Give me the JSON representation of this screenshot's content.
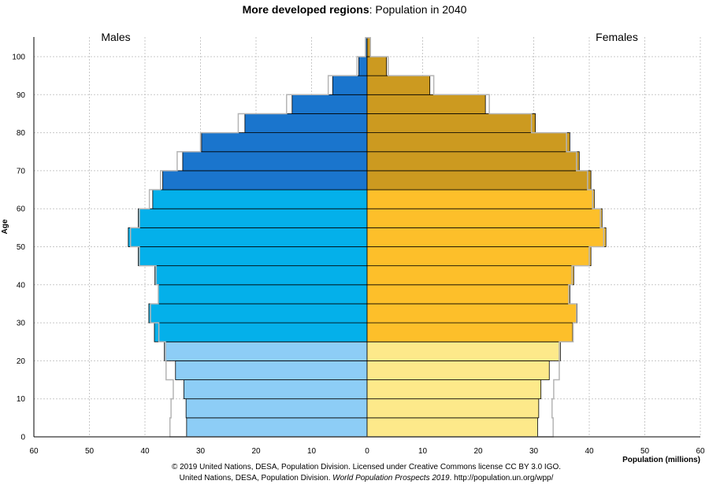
{
  "chart_data": {
    "type": "bar",
    "title_bold": "More developed regions",
    "title_rest": ": Population in 2040",
    "left_label": "Males",
    "right_label": "Females",
    "ylabel": "Age",
    "xlabel": "Population (millions)",
    "xlim": [
      -60,
      60
    ],
    "x_ticks": [
      -60,
      -50,
      -40,
      -30,
      -20,
      -10,
      0,
      10,
      20,
      30,
      40,
      50,
      60
    ],
    "x_tick_labels": [
      "60",
      "50",
      "40",
      "30",
      "20",
      "10",
      "0",
      "10",
      "20",
      "30",
      "40",
      "50",
      "60"
    ],
    "y_ticks": [
      0,
      10,
      20,
      30,
      40,
      50,
      60,
      70,
      80,
      90,
      100
    ],
    "age_groups": [
      "0-4",
      "5-9",
      "10-14",
      "15-19",
      "20-24",
      "25-29",
      "30-34",
      "35-39",
      "40-44",
      "45-49",
      "50-54",
      "55-59",
      "60-64",
      "65-69",
      "70-74",
      "75-79",
      "80-84",
      "85-89",
      "90-94",
      "95-99",
      "100+"
    ],
    "grid": true,
    "series": [
      {
        "name": "Males",
        "values": [
          32.5,
          32.6,
          33.0,
          34.5,
          36.5,
          38.3,
          39.3,
          37.6,
          38.2,
          41.2,
          43.0,
          41.2,
          38.6,
          36.8,
          33.2,
          29.8,
          22.0,
          13.5,
          6.2,
          1.5,
          0.3
        ]
      },
      {
        "name": "Females",
        "values": [
          30.7,
          30.9,
          31.3,
          32.8,
          34.8,
          37.0,
          37.8,
          36.5,
          37.2,
          40.3,
          43.0,
          42.3,
          40.9,
          40.3,
          38.2,
          36.5,
          30.3,
          21.3,
          11.3,
          3.5,
          0.6
        ]
      }
    ],
    "comparison_males": [
      35.5,
      35.3,
      34.9,
      36.2,
      36.3,
      37.5,
      39.0,
      37.6,
      38.0,
      41.0,
      42.6,
      41.0,
      39.2,
      37.2,
      34.2,
      30.0,
      23.2,
      14.5,
      7.0,
      1.8,
      0.3
    ],
    "comparison_females": [
      33.5,
      33.3,
      33.6,
      34.6,
      34.6,
      37.1,
      37.7,
      36.3,
      36.9,
      40.0,
      42.6,
      42.0,
      40.6,
      39.7,
      37.7,
      35.9,
      29.6,
      22.0,
      12.0,
      3.8,
      0.6
    ],
    "bar_colors_male": [
      "#8dcdf6",
      "#8dcdf6",
      "#8dcdf6",
      "#8dcdf6",
      "#8dcdf6",
      "#04b0ea",
      "#04b0ea",
      "#04b0ea",
      "#04b0ea",
      "#04b0ea",
      "#04b0ea",
      "#04b0ea",
      "#04b0ea",
      "#1a75cd",
      "#1a75cd",
      "#1a75cd",
      "#1a75cd",
      "#1a75cd",
      "#1a75cd",
      "#1a75cd",
      "#1a75cd"
    ],
    "bar_colors_female": [
      "#fde98a",
      "#fde98a",
      "#fde98a",
      "#fde98a",
      "#fde98a",
      "#fdbf2a",
      "#fdbf2a",
      "#fdbf2a",
      "#fdbf2a",
      "#fdbf2a",
      "#fdbf2a",
      "#fdbf2a",
      "#fdbf2a",
      "#cc9a20",
      "#cc9a20",
      "#cc9a20",
      "#cc9a20",
      "#cc9a20",
      "#cc9a20",
      "#cc9a20",
      "#cc9a20"
    ],
    "comparison_color": "#b5b5b5",
    "grid_color": "#c8c8c8",
    "credit_line1": "© 2019 United Nations, DESA, Population Division. Licensed under Creative Commons license CC BY 3.0 IGO.",
    "credit_line2_start": "United Nations, DESA, Population Division. ",
    "credit_line2_italic": "World Population Prospects 2019",
    "credit_line2_end": ". http://population.un.org/wpp/"
  }
}
